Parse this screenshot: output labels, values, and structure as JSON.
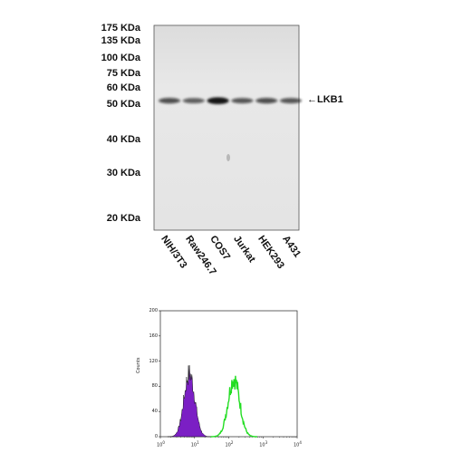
{
  "western_blot": {
    "mw_markers": [
      {
        "label": "175 KDa",
        "kda": 175
      },
      {
        "label": "135 KDa",
        "kda": 135
      },
      {
        "label": "100 KDa",
        "kda": 100
      },
      {
        "label": "75 KDa",
        "kda": 75
      },
      {
        "label": "60 KDa",
        "kda": 60
      },
      {
        "label": "50 KDa",
        "kda": 50
      },
      {
        "label": "40 KDa",
        "kda": 40
      },
      {
        "label": "30 KDa",
        "kda": 30
      },
      {
        "label": "20 KDa",
        "kda": 20
      }
    ],
    "lanes": [
      {
        "label": "NIH/3T3",
        "intensity": 0.55
      },
      {
        "label": "Raw246.7",
        "intensity": 0.45
      },
      {
        "label": "COS7",
        "intensity": 1.0
      },
      {
        "label": "Jurkat",
        "intensity": 0.5
      },
      {
        "label": "HEK293",
        "intensity": 0.55
      },
      {
        "label": "A431",
        "intensity": 0.5
      }
    ],
    "target": "LKB1",
    "target_kda": 52,
    "colors": {
      "membrane": "#e6e6e6",
      "band": "#151515"
    }
  },
  "flow_histogram": {
    "y_ticks": [
      "200",
      "160",
      "120",
      "80",
      "40",
      "0"
    ],
    "x_ticks": [
      {
        "base": "10",
        "exp": "0"
      },
      {
        "base": "10",
        "exp": "1"
      },
      {
        "base": "10",
        "exp": "2"
      },
      {
        "base": "10",
        "exp": "3"
      },
      {
        "base": "10",
        "exp": "4"
      }
    ],
    "y_axis_title": "Counts",
    "ylim": [
      0,
      200
    ],
    "xlim_log10": [
      0,
      4
    ],
    "series": [
      {
        "color": "#7b1fc4",
        "filled": true,
        "peak_log10": 0.85,
        "sigma": 0.16,
        "peak_count": 100
      },
      {
        "color": "#22dd22",
        "filled": false,
        "peak_log10": 2.15,
        "sigma": 0.17,
        "peak_count": 92
      }
    ]
  }
}
